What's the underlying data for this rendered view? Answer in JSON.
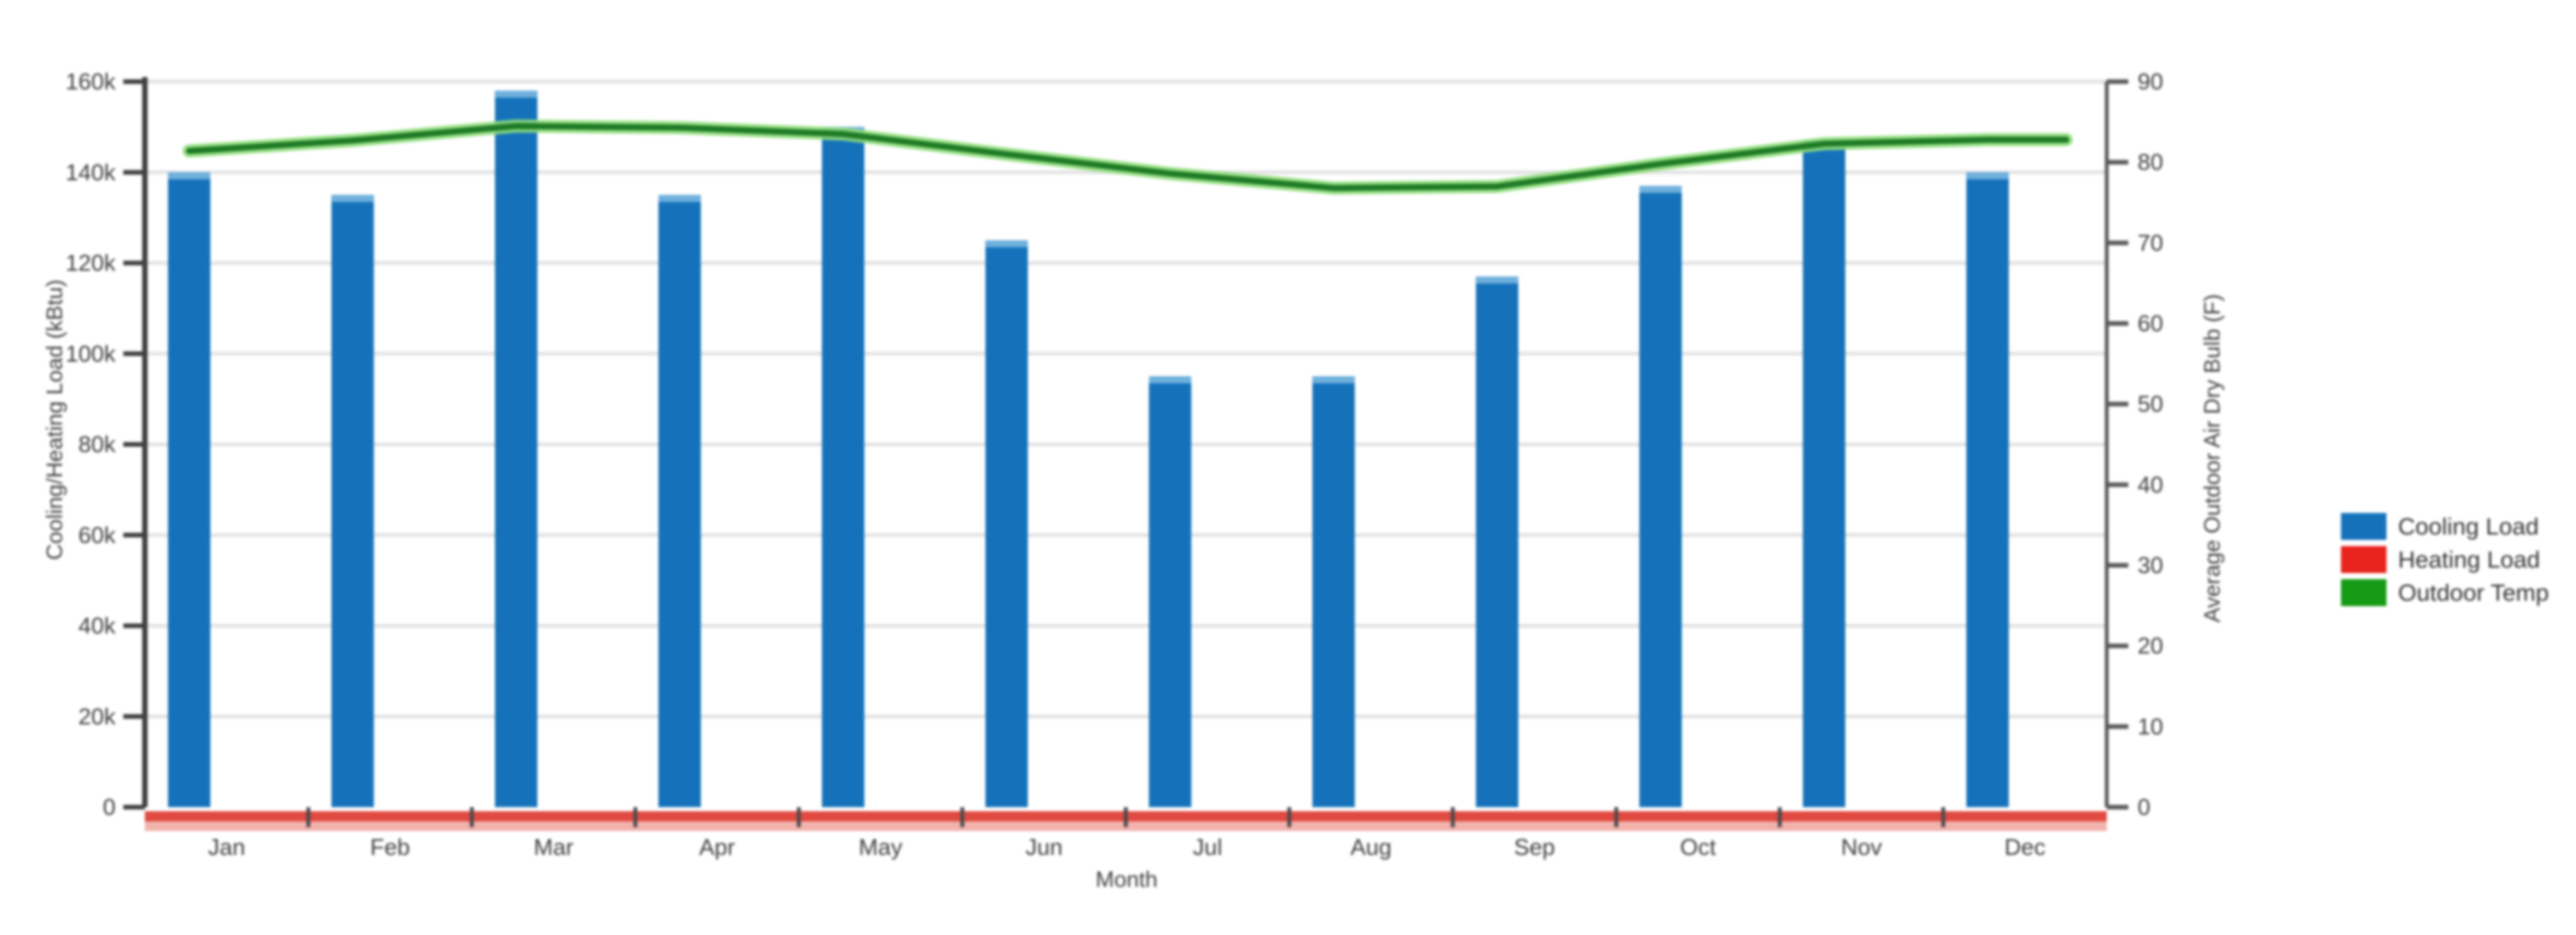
{
  "chart_data": {
    "type": "bar",
    "title": "",
    "xlabel": "Month",
    "ylabel_left": "Cooling/Heating Load (kBtu)",
    "ylabel_right": "Average Outdoor Air Dry Bulb (F)",
    "categories": [
      "Jan",
      "Feb",
      "Mar",
      "Apr",
      "May",
      "Jun",
      "Jul",
      "Aug",
      "Sep",
      "Oct",
      "Nov",
      "Dec"
    ],
    "left_axis": {
      "min": 0,
      "max": 160000,
      "tick_step": 20000,
      "tick_labels": [
        "0",
        "20k",
        "40k",
        "60k",
        "80k",
        "100k",
        "120k",
        "140k",
        "160k"
      ]
    },
    "right_axis": {
      "min": 0,
      "max": 90,
      "tick_step": 10,
      "tick_labels": [
        "0",
        "10",
        "20",
        "30",
        "40",
        "50",
        "60",
        "70",
        "80",
        "90"
      ]
    },
    "grid": true,
    "series": [
      {
        "name": "Cooling Load",
        "type": "bar",
        "axis": "left",
        "color": "#1572ba",
        "cap_color": "#6fb0dd",
        "values": [
          140000,
          135000,
          158000,
          135000,
          150000,
          125000,
          95000,
          95000,
          117000,
          137000,
          147000,
          140000
        ]
      },
      {
        "name": "Heating Load",
        "type": "line",
        "axis": "left",
        "color": "#e04a41",
        "halo_color": "#f2b3ad",
        "values": [
          0,
          0,
          0,
          0,
          0,
          0,
          0,
          0,
          0,
          0,
          0,
          0
        ]
      },
      {
        "name": "Outdoor Temp",
        "type": "line",
        "axis": "right",
        "color": "#1f7a26",
        "halo_color": "#8edd7a",
        "values": [
          81.4,
          82.7,
          84.5,
          84.3,
          83.5,
          81.0,
          78.6,
          76.8,
          77.0,
          79.8,
          82.3,
          82.8
        ]
      }
    ],
    "legend": {
      "position": "right",
      "items": [
        {
          "label": "Cooling Load",
          "color": "#1572ba"
        },
        {
          "label": "Heating Load",
          "color": "#e8221c"
        },
        {
          "label": "Outdoor Temp",
          "color": "#149a14"
        }
      ]
    },
    "colors": {
      "gridline": "#e4e4e4",
      "axis_line": "#3f3f3f",
      "tick_text": "#3d3d3d"
    }
  }
}
